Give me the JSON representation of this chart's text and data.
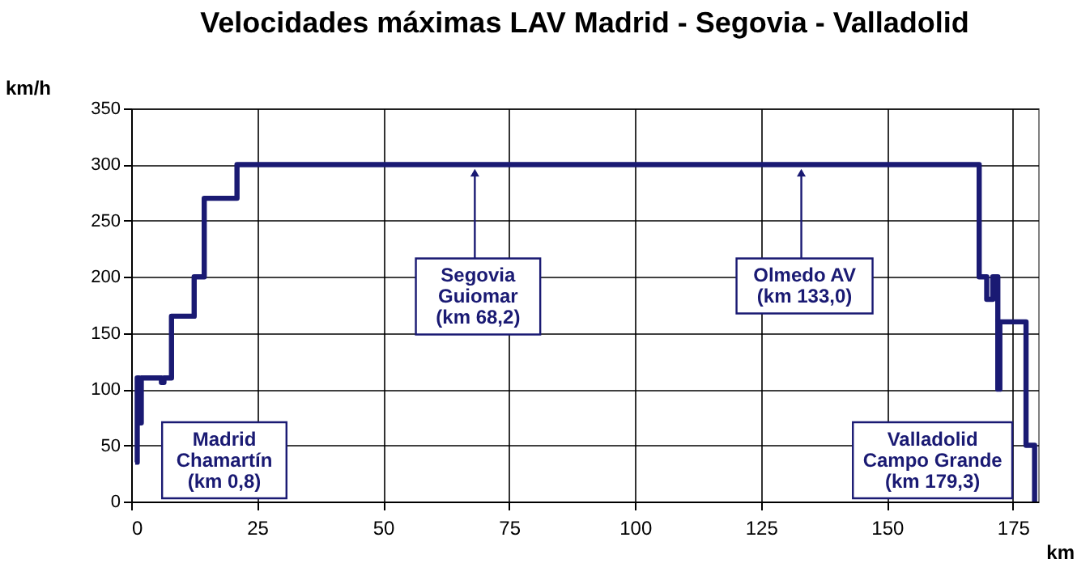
{
  "chart_data": {
    "type": "step",
    "title": "Velocidades máximas LAV Madrid - Segovia - Valladolid",
    "xlabel": "km",
    "ylabel": "km/h",
    "x": [
      0.8,
      1.2,
      1.6,
      2.0,
      6.0,
      6.5,
      8.0,
      12.5,
      14.5,
      21.0,
      168.3,
      169.8,
      171.0,
      172.0,
      172.4,
      177.6,
      179.3
    ],
    "series": [
      {
        "color": "#1a1a73",
        "values": [
          35,
          110,
          70,
          110,
          106,
          110,
          165,
          200,
          270,
          300,
          200,
          180,
          200,
          100,
          160,
          50,
          0
        ]
      }
    ],
    "xlim": [
      0,
      180
    ],
    "xticks": [
      0,
      25,
      50,
      75,
      100,
      125,
      150,
      175
    ],
    "ylim": [
      0,
      350
    ],
    "yticks": [
      0,
      50,
      100,
      150,
      200,
      250,
      300,
      350
    ],
    "grid": true,
    "line_style": "solid",
    "marker": "none",
    "annotations": [
      {
        "text": "Madrid\nChamartín\n(km 0,8)",
        "x": 0.8,
        "y": 35
      },
      {
        "text": "Segovia\nGuiomar\n(km 68,2)",
        "x": 68.2,
        "y": 300
      },
      {
        "text": "Olmedo AV\n(km 133,0)",
        "x": 133.0,
        "y": 300
      },
      {
        "text": "Valladolid\nCampo Grande\n(km 179,3)",
        "x": 179.3,
        "y": 0
      }
    ]
  }
}
